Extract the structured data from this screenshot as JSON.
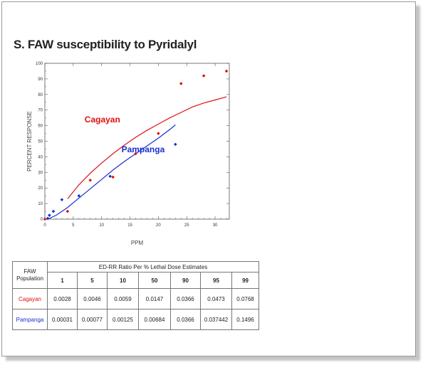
{
  "title": "S. FAW susceptibility to Pyridalyl",
  "chart_data": {
    "type": "scatter",
    "title": "S. FAW susceptibility to Pyridalyl",
    "xlabel": "PPM",
    "ylabel": "PERCENT  RESPONSE",
    "xlim": [
      0,
      32.5
    ],
    "ylim": [
      0,
      100
    ],
    "xticks": [
      0,
      5,
      10,
      15,
      20,
      25,
      30
    ],
    "yticks": [
      0,
      10,
      20,
      30,
      40,
      50,
      60,
      70,
      80,
      90,
      100
    ],
    "series": [
      {
        "name": "Cagayan",
        "color": "#e01010",
        "points": [
          [
            0,
            0
          ],
          [
            4,
            5
          ],
          [
            8,
            25
          ],
          [
            12,
            27
          ],
          [
            16,
            42
          ],
          [
            20,
            55
          ],
          [
            24,
            87
          ],
          [
            28,
            92
          ],
          [
            32,
            95
          ]
        ],
        "fit": [
          [
            4,
            13
          ],
          [
            6,
            22
          ],
          [
            8,
            29.5
          ],
          [
            10,
            36
          ],
          [
            12,
            42
          ],
          [
            14,
            47.5
          ],
          [
            16,
            52.5
          ],
          [
            18,
            57
          ],
          [
            20,
            61
          ],
          [
            22,
            65
          ],
          [
            24,
            68.5
          ],
          [
            26,
            72
          ],
          [
            28,
            74.5
          ],
          [
            30,
            76.5
          ],
          [
            32,
            78.5
          ]
        ]
      },
      {
        "name": "Pampanga",
        "color": "#1a2fd0",
        "points": [
          [
            0.5,
            0.5
          ],
          [
            0.8,
            2.5
          ],
          [
            1.5,
            5
          ],
          [
            3,
            12.5
          ],
          [
            6,
            15
          ],
          [
            11.5,
            27.5
          ],
          [
            23,
            48
          ]
        ],
        "fit": [
          [
            0.5,
            0
          ],
          [
            2,
            2.5
          ],
          [
            4,
            7.5
          ],
          [
            6,
            13.5
          ],
          [
            8,
            19.5
          ],
          [
            10,
            25.5
          ],
          [
            12,
            31.5
          ],
          [
            14,
            37
          ],
          [
            16,
            42
          ],
          [
            18,
            47
          ],
          [
            20,
            52
          ],
          [
            22,
            57.5
          ],
          [
            23,
            60.5
          ]
        ]
      }
    ]
  },
  "table": {
    "header_population": "FAW Population",
    "header_group": "ED-RR   Ratio Per % Lethal Dose Estimates",
    "percents": [
      "1",
      "5",
      "10",
      "50",
      "90",
      "95",
      "99"
    ],
    "rows": [
      {
        "population": "Cagayan",
        "values": [
          "0.0028",
          "0.0046",
          "0.0059",
          "0.0147",
          "0.0366",
          "0.0473",
          "0.0768"
        ]
      },
      {
        "population": "Pampanga",
        "values": [
          "0.00031",
          "0.00077",
          "0.00125",
          "0.00684",
          "0.0366",
          "0.037442",
          "0.1496"
        ]
      }
    ]
  }
}
